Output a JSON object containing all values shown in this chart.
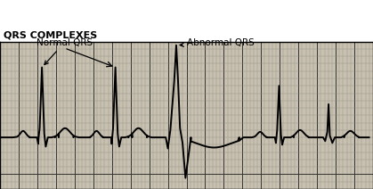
{
  "title": "QRS COMPLEXES",
  "label_normal": "Normal QRS",
  "label_abnormal": "Abnormal QRS",
  "bg_color": "#c8c0b0",
  "grid_minor_color": "#888880",
  "grid_major_color": "#333330",
  "line_color": "#000000",
  "figsize": [
    4.19,
    2.12
  ],
  "dpi": 100,
  "xlim": [
    0,
    100
  ],
  "ylim": [
    -2.8,
    5.2
  ]
}
